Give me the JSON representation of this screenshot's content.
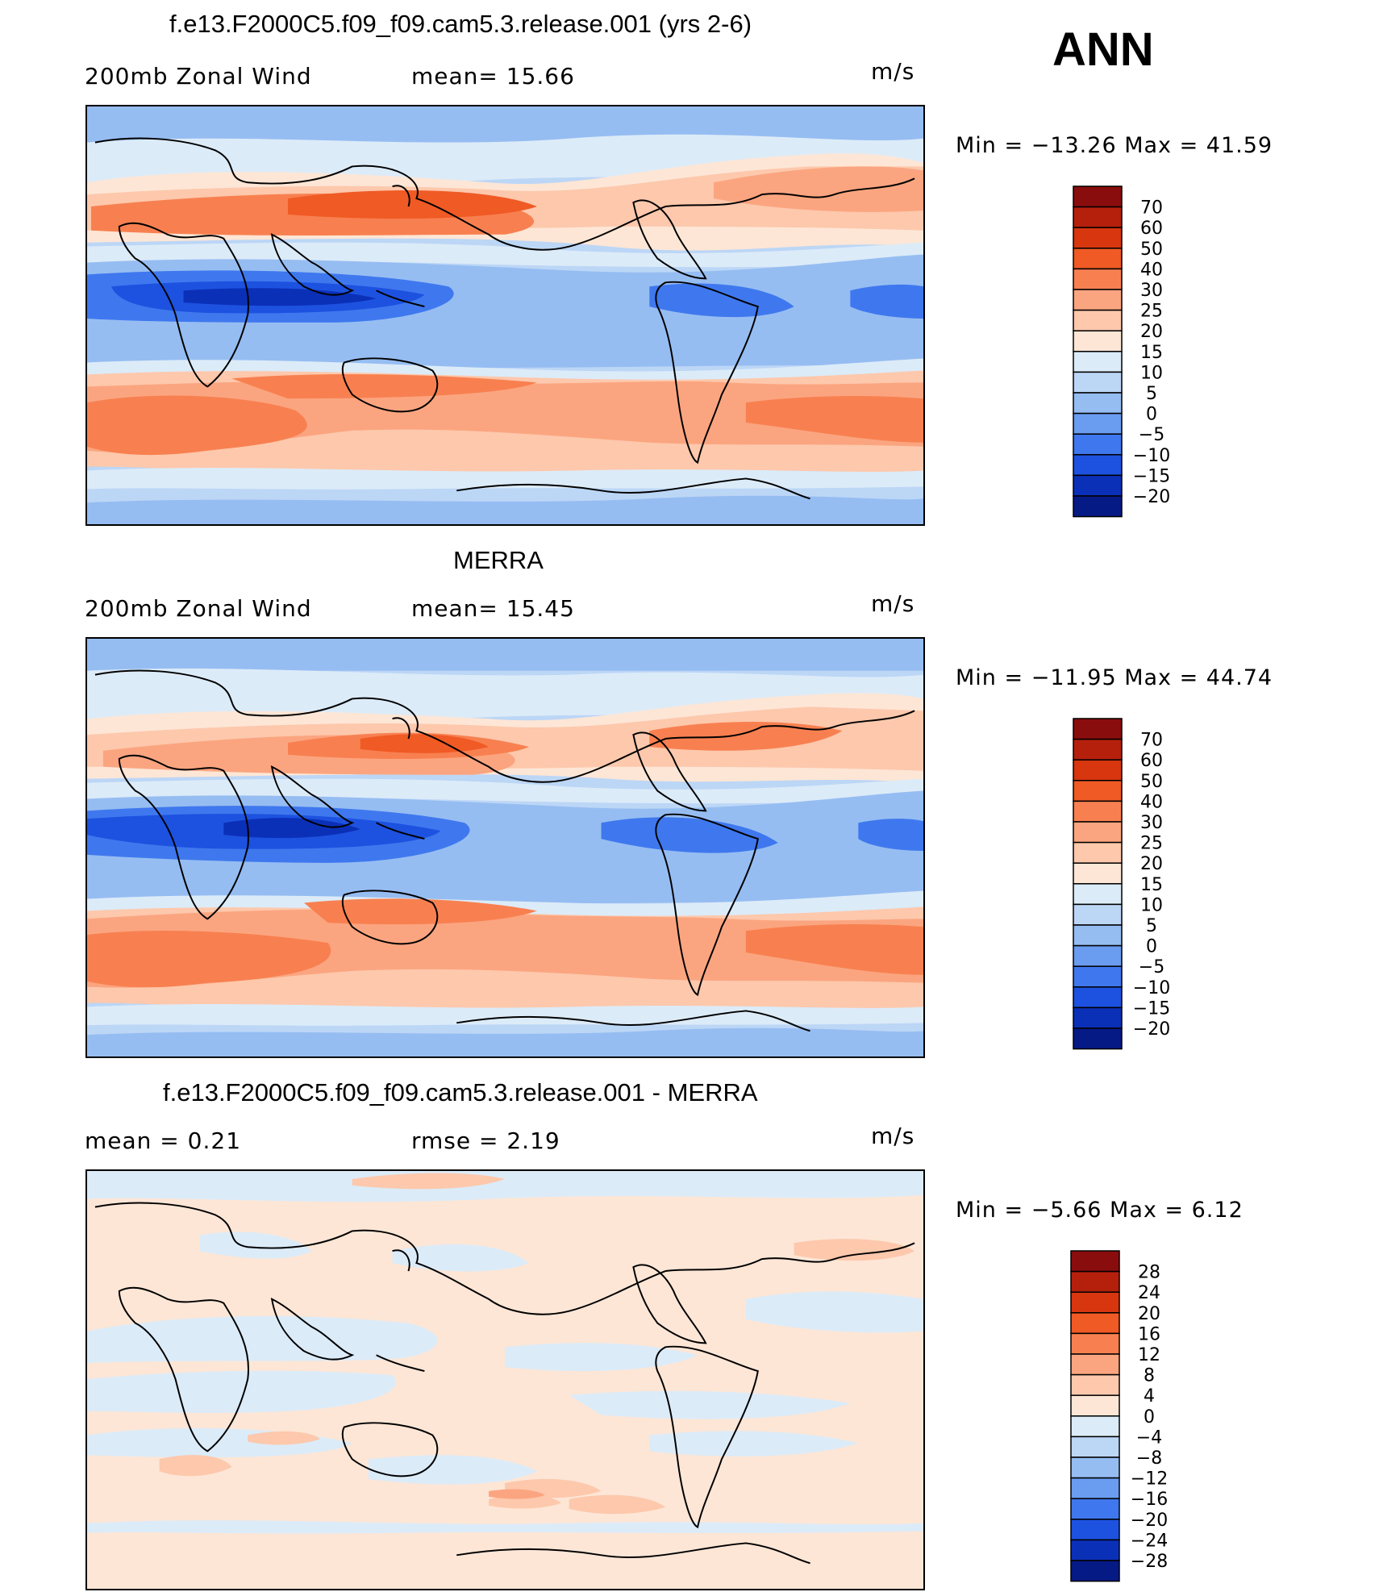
{
  "season": "ANN",
  "panels": [
    {
      "title": "f.e13.F2000C5.f09_f09.cam5.3.release.001 (yrs 2-6)",
      "left_label": "200mb  Zonal  Wind",
      "center_label": "mean=   15.66",
      "units": "m/s",
      "minmax": "Min  =  −13.26  Max  =    41.59",
      "colorbar_levels": [
        "70",
        "60",
        "50",
        "40",
        "30",
        "25",
        "20",
        "15",
        "10",
        "5",
        "0",
        "−5",
        "−10",
        "−15",
        "−20"
      ],
      "colorbar_colors": [
        "#8a0d0d",
        "#b5200d",
        "#d8360f",
        "#f05a25",
        "#f88050",
        "#fba580",
        "#fdc8ac",
        "#fde6d6",
        "#dcebf8",
        "#bcd6f6",
        "#96bdf2",
        "#6a9cf0",
        "#3f78ee",
        "#1d52e0",
        "#0b30b8",
        "#061a86"
      ],
      "minmax_mean": "15.66"
    },
    {
      "title": "MERRA",
      "left_label": "200mb  Zonal  Wind",
      "center_label": "mean=   15.45",
      "units": "m/s",
      "minmax": "Min  =  −11.95  Max  =    44.74",
      "colorbar_levels": [
        "70",
        "60",
        "50",
        "40",
        "30",
        "25",
        "20",
        "15",
        "10",
        "5",
        "0",
        "−5",
        "−10",
        "−15",
        "−20"
      ],
      "colorbar_colors": [
        "#8a0d0d",
        "#b5200d",
        "#d8360f",
        "#f05a25",
        "#f88050",
        "#fba580",
        "#fdc8ac",
        "#fde6d6",
        "#dcebf8",
        "#bcd6f6",
        "#96bdf2",
        "#6a9cf0",
        "#3f78ee",
        "#1d52e0",
        "#0b30b8",
        "#061a86"
      ]
    },
    {
      "title": "f.e13.F2000C5.f09_f09.cam5.3.release.001 - MERRA",
      "left_label": "mean  =      0.21",
      "center_label": "rmse  =      2.19",
      "units": "m/s",
      "minmax": "Min  =     −5.66  Max  =       6.12",
      "colorbar_levels": [
        "28",
        "24",
        "20",
        "16",
        "12",
        "8",
        "4",
        "0",
        "−4",
        "−8",
        "−12",
        "−16",
        "−20",
        "−24",
        "−28"
      ],
      "colorbar_colors": [
        "#8a0d0d",
        "#b5200d",
        "#d8360f",
        "#f05a25",
        "#f88050",
        "#fba580",
        "#fdc8ac",
        "#fde6d6",
        "#dcebf8",
        "#bcd6f6",
        "#96bdf2",
        "#6a9cf0",
        "#3f78ee",
        "#1d52e0",
        "#0b30b8",
        "#061a86"
      ]
    }
  ]
}
